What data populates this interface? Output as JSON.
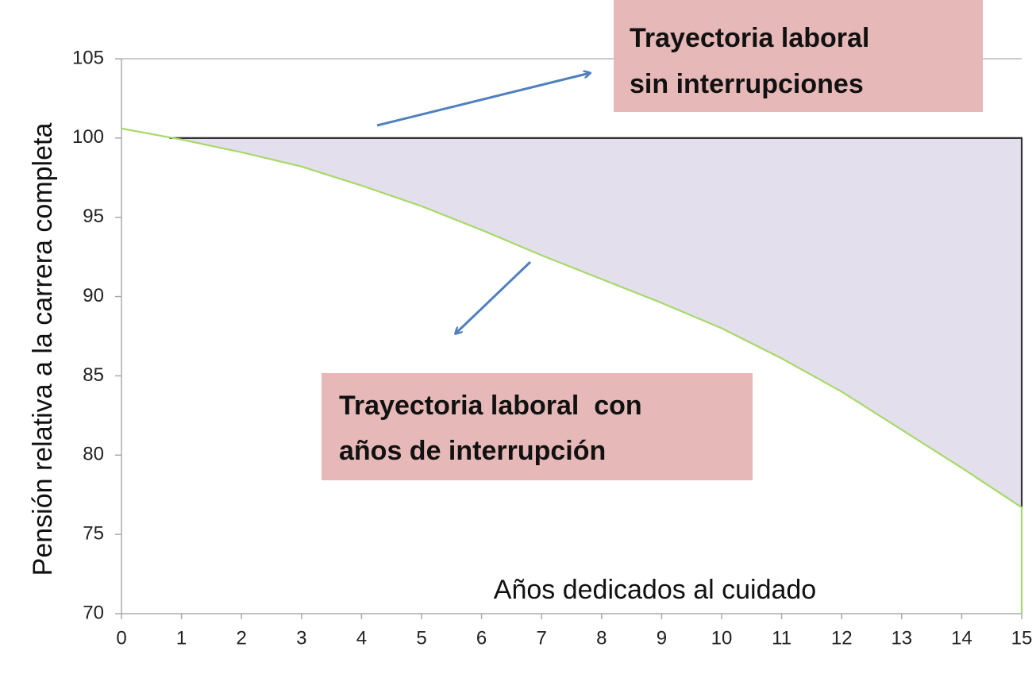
{
  "chart_data": {
    "type": "line",
    "y_label": "Pensión relativa a la carrera completa",
    "x_label": "Años dedicados al cuidado",
    "series": [
      {
        "name": "Trayectoria laboral sin interrupciones",
        "color": "#333333",
        "x": [
          0.8,
          15,
          15
        ],
        "values": [
          100,
          100,
          76.7
        ]
      },
      {
        "name": "Trayectoria laboral con años de interrupción",
        "color": "#a6d96a",
        "x": [
          0,
          1,
          2,
          3,
          4,
          5,
          6,
          7,
          8,
          9,
          10,
          11,
          12,
          13,
          14,
          15,
          15
        ],
        "values": [
          100.6,
          99.9,
          99.1,
          98.2,
          97.0,
          95.7,
          94.2,
          92.6,
          91.1,
          89.6,
          88.0,
          86.1,
          84.0,
          81.6,
          79.2,
          76.7,
          70
        ]
      }
    ],
    "annotations": [
      {
        "lines": [
          "Trayectoria laboral",
          "sin interrupciones"
        ]
      },
      {
        "lines": [
          "Trayectoria laboral  con",
          "años de interrupción"
        ]
      }
    ],
    "fill_color": "#e4dfec",
    "xlim": [
      0,
      15
    ],
    "xticks": [
      0,
      1,
      2,
      3,
      4,
      5,
      6,
      7,
      8,
      9,
      10,
      11,
      12,
      13,
      14,
      15
    ],
    "ylim": [
      70,
      105
    ],
    "yticks": [
      70,
      75,
      80,
      85,
      90,
      95,
      100,
      105
    ]
  }
}
